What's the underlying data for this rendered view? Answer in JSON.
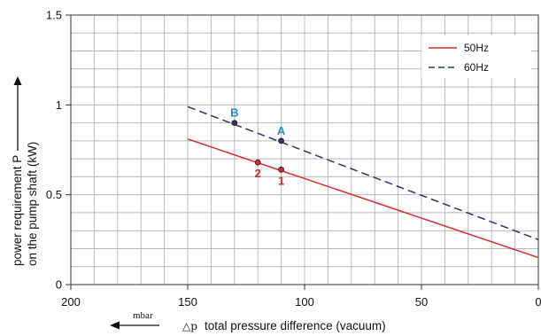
{
  "chart_data": {
    "type": "line",
    "xlabel_symbol": "△p",
    "xlabel": "total pressure difference (vacuum)",
    "xunit": "mbar",
    "ylabel_line1": "power requirement P",
    "ylabel_line2": "on the pump shaft (kW)",
    "xlim": [
      200,
      0
    ],
    "ylim": [
      0,
      1.5
    ],
    "x_ticks": [
      200,
      150,
      100,
      50,
      0
    ],
    "x_tick_labels": [
      "200",
      "150",
      "100",
      "50",
      "0"
    ],
    "y_ticks": [
      0,
      0.5,
      1,
      1.5
    ],
    "y_tick_labels": [
      "0",
      "0.5",
      "1",
      "1.5"
    ],
    "grid": true,
    "legend_position": "top-right",
    "series": [
      {
        "name": "50Hz",
        "color": "#d62b2b",
        "style": "solid",
        "x": [
          150,
          0
        ],
        "y": [
          0.81,
          0.15
        ]
      },
      {
        "name": "60Hz",
        "color": "#2b3566",
        "style": "dashed",
        "x": [
          150,
          0
        ],
        "y": [
          0.99,
          0.25
        ]
      }
    ],
    "points": [
      {
        "label": "A",
        "x": 110,
        "y": 0.8,
        "label_color": "#2a8fc0",
        "marker_color": "#2b3566",
        "label_pos": "above"
      },
      {
        "label": "B",
        "x": 130,
        "y": 0.9,
        "label_color": "#2a8fc0",
        "marker_color": "#2b3566",
        "label_pos": "above"
      },
      {
        "label": "1",
        "x": 110,
        "y": 0.64,
        "label_color": "#d62b2b",
        "marker_color": "#d62b2b",
        "label_pos": "below"
      },
      {
        "label": "2",
        "x": 120,
        "y": 0.68,
        "label_color": "#d62b2b",
        "marker_color": "#d62b2b",
        "label_pos": "below"
      }
    ]
  }
}
